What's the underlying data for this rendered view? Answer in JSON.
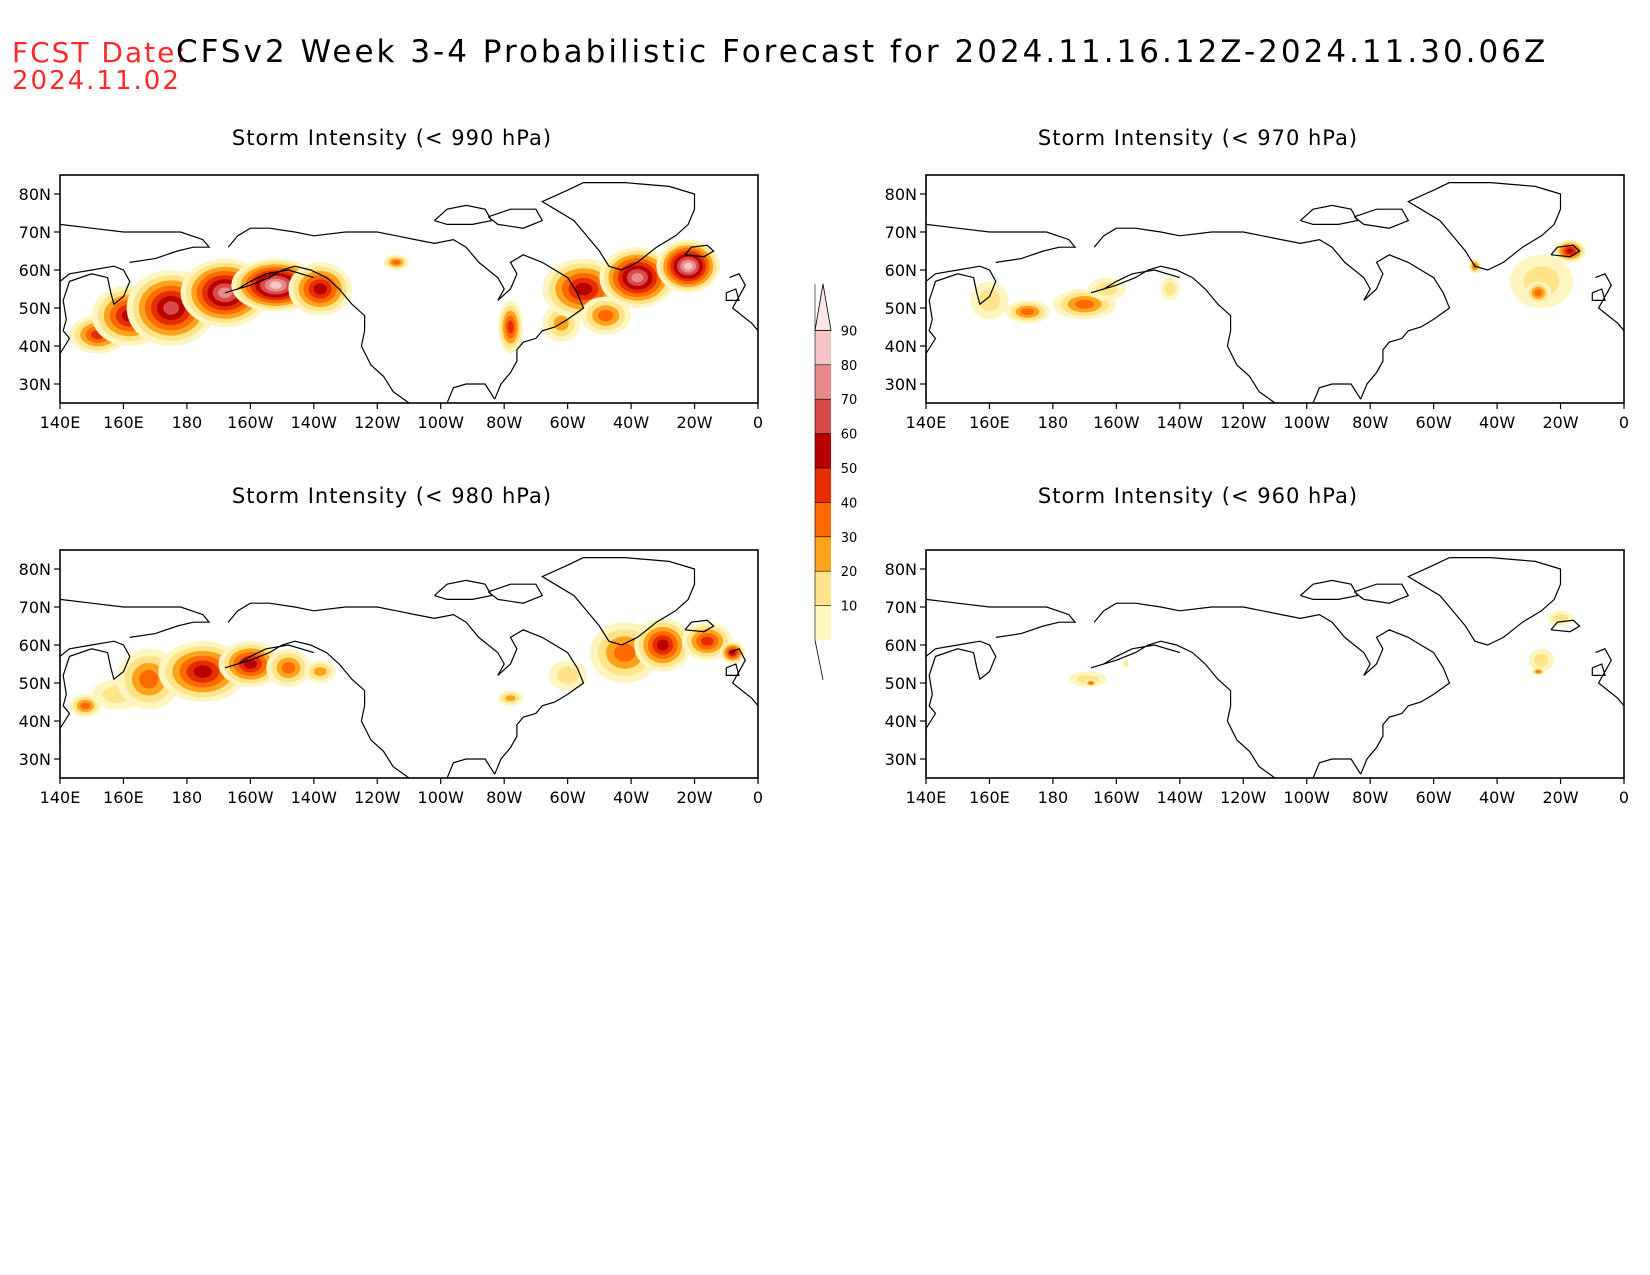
{
  "header": {
    "fcst_label": "FCST Date:",
    "fcst_date": "2024.11.02",
    "title": "CFSv2 Week 3-4 Probabilistic Forecast for 2024.11.16.12Z-2024.11.30.06Z"
  },
  "axes": {
    "lat_labels": [
      "80N",
      "70N",
      "60N",
      "50N",
      "40N",
      "30N"
    ],
    "lat_values": [
      80,
      70,
      60,
      50,
      40,
      30
    ],
    "lon_labels": [
      "140E",
      "160E",
      "180",
      "160W",
      "140W",
      "120W",
      "100W",
      "80W",
      "60W",
      "40W",
      "20W",
      "0"
    ],
    "lon_range": [
      140,
      360
    ],
    "lat_range": [
      25,
      85
    ]
  },
  "colorbar": {
    "levels": [
      10,
      20,
      30,
      40,
      50,
      60,
      70,
      80,
      90
    ],
    "colors": [
      "#fff5c0",
      "#ffe48a",
      "#ffa21c",
      "#ff6a00",
      "#e52d00",
      "#b80000",
      "#d94a4a",
      "#e88a8a",
      "#f6c4c4",
      "#fde6e6"
    ]
  },
  "panels": [
    {
      "title": "Storm Intensity (< 990 hPa)",
      "blobs": [
        {
          "lon": 152,
          "lat": 43,
          "rx": 9,
          "ry": 5,
          "level": 4
        },
        {
          "lon": 162,
          "lat": 48,
          "rx": 12,
          "ry": 8,
          "level": 5
        },
        {
          "lon": 175,
          "lat": 50,
          "rx": 14,
          "ry": 10,
          "level": 6
        },
        {
          "lon": 192,
          "lat": 54,
          "rx": 14,
          "ry": 9,
          "level": 7
        },
        {
          "lon": 208,
          "lat": 56,
          "rx": 14,
          "ry": 7,
          "level": 8
        },
        {
          "lon": 222,
          "lat": 55,
          "rx": 10,
          "ry": 7,
          "level": 5
        },
        {
          "lon": 246,
          "lat": 62,
          "rx": 4,
          "ry": 2,
          "level": 3
        },
        {
          "lon": 282,
          "lat": 45,
          "rx": 4,
          "ry": 7,
          "level": 4
        },
        {
          "lon": 298,
          "lat": 46,
          "rx": 6,
          "ry": 5,
          "level": 2
        },
        {
          "lon": 305,
          "lat": 55,
          "rx": 13,
          "ry": 8,
          "level": 5
        },
        {
          "lon": 322,
          "lat": 58,
          "rx": 12,
          "ry": 8,
          "level": 7
        },
        {
          "lon": 338,
          "lat": 61,
          "rx": 10,
          "ry": 7,
          "level": 8
        },
        {
          "lon": 312,
          "lat": 48,
          "rx": 8,
          "ry": 5,
          "level": 3
        }
      ]
    },
    {
      "title": "Storm Intensity (< 970 hPa)",
      "blobs": [
        {
          "lon": 160,
          "lat": 52,
          "rx": 6,
          "ry": 5,
          "level": 1
        },
        {
          "lon": 172,
          "lat": 49,
          "rx": 7,
          "ry": 3,
          "level": 3
        },
        {
          "lon": 190,
          "lat": 51,
          "rx": 10,
          "ry": 4,
          "level": 3
        },
        {
          "lon": 197,
          "lat": 55,
          "rx": 6,
          "ry": 3,
          "level": 1
        },
        {
          "lon": 217,
          "lat": 55,
          "rx": 3,
          "ry": 3,
          "level": 1
        },
        {
          "lon": 334,
          "lat": 57,
          "rx": 10,
          "ry": 7,
          "level": 1
        },
        {
          "lon": 333,
          "lat": 54,
          "rx": 4,
          "ry": 3,
          "level": 3
        },
        {
          "lon": 343,
          "lat": 65,
          "rx": 5,
          "ry": 3,
          "level": 5
        },
        {
          "lon": 313,
          "lat": 61,
          "rx": 2,
          "ry": 2,
          "level": 3
        }
      ]
    },
    {
      "title": "Storm Intensity (< 980 hPa)",
      "blobs": [
        {
          "lon": 148,
          "lat": 44,
          "rx": 5,
          "ry": 3,
          "level": 3
        },
        {
          "lon": 158,
          "lat": 47,
          "rx": 8,
          "ry": 4,
          "level": 1
        },
        {
          "lon": 168,
          "lat": 51,
          "rx": 10,
          "ry": 8,
          "level": 3
        },
        {
          "lon": 185,
          "lat": 53,
          "rx": 14,
          "ry": 8,
          "level": 5
        },
        {
          "lon": 200,
          "lat": 55,
          "rx": 10,
          "ry": 6,
          "level": 5
        },
        {
          "lon": 212,
          "lat": 54,
          "rx": 7,
          "ry": 5,
          "level": 3
        },
        {
          "lon": 222,
          "lat": 53,
          "rx": 5,
          "ry": 3,
          "level": 2
        },
        {
          "lon": 282,
          "lat": 46,
          "rx": 4,
          "ry": 2,
          "level": 2
        },
        {
          "lon": 300,
          "lat": 52,
          "rx": 6,
          "ry": 4,
          "level": 1
        },
        {
          "lon": 318,
          "lat": 58,
          "rx": 11,
          "ry": 8,
          "level": 3
        },
        {
          "lon": 330,
          "lat": 60,
          "rx": 9,
          "ry": 7,
          "level": 5
        },
        {
          "lon": 344,
          "lat": 61,
          "rx": 8,
          "ry": 5,
          "level": 4
        },
        {
          "lon": 352,
          "lat": 58,
          "rx": 4,
          "ry": 3,
          "level": 5
        }
      ]
    },
    {
      "title": "Storm Intensity (< 960 hPa)",
      "blobs": [
        {
          "lon": 191,
          "lat": 51,
          "rx": 6,
          "ry": 2,
          "level": 1
        },
        {
          "lon": 192,
          "lat": 50,
          "rx": 2,
          "ry": 1,
          "level": 3
        },
        {
          "lon": 203,
          "lat": 55,
          "rx": 1,
          "ry": 1,
          "level": 1
        },
        {
          "lon": 334,
          "lat": 56,
          "rx": 4,
          "ry": 3,
          "level": 1
        },
        {
          "lon": 333,
          "lat": 53,
          "rx": 2,
          "ry": 1,
          "level": 3
        },
        {
          "lon": 340,
          "lat": 67,
          "rx": 4,
          "ry": 2,
          "level": 1
        }
      ]
    }
  ]
}
